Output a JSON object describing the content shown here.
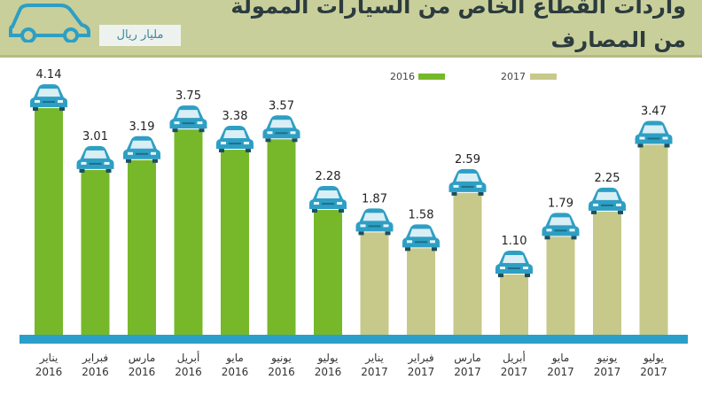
{
  "header": {
    "title_line1": "واردات القطاع الخاص من السيارات الممولة",
    "title_line2": "من المصارف",
    "unit": "مليار ريال"
  },
  "legend": {
    "items": [
      {
        "label": "2016",
        "color": "#76b82a"
      },
      {
        "label": "2017",
        "color": "#c6c98a"
      }
    ]
  },
  "colors": {
    "bar_2016": "#76b82a",
    "bar_2017": "#c6c98a",
    "base": "#2a9fc9",
    "car": "#2e9fc4",
    "header_bg": "#c9cf9a"
  },
  "chart_data": {
    "type": "bar",
    "categories": [
      {
        "month": "يناير",
        "year": "2016"
      },
      {
        "month": "فبراير",
        "year": "2016"
      },
      {
        "month": "مارس",
        "year": "2016"
      },
      {
        "month": "أبريل",
        "year": "2016"
      },
      {
        "month": "مايو",
        "year": "2016"
      },
      {
        "month": "يونيو",
        "year": "2016"
      },
      {
        "month": "يوليو",
        "year": "2016"
      },
      {
        "month": "يناير",
        "year": "2017"
      },
      {
        "month": "فبراير",
        "year": "2017"
      },
      {
        "month": "مارس",
        "year": "2017"
      },
      {
        "month": "أبريل",
        "year": "2017"
      },
      {
        "month": "مايو",
        "year": "2017"
      },
      {
        "month": "يونيو",
        "year": "2017"
      },
      {
        "month": "يوليو",
        "year": "2017"
      }
    ],
    "series": [
      {
        "name": "2016",
        "values": [
          4.14,
          3.01,
          3.19,
          3.75,
          3.38,
          3.57,
          2.28,
          null,
          null,
          null,
          null,
          null,
          null,
          null
        ]
      },
      {
        "name": "2017",
        "values": [
          null,
          null,
          null,
          null,
          null,
          null,
          null,
          1.87,
          1.58,
          2.59,
          1.1,
          1.79,
          2.25,
          3.47
        ]
      }
    ],
    "value_labels": [
      "4.14",
      "3.01",
      "3.19",
      "3.75",
      "3.38",
      "3.57",
      "2.28",
      "1.87",
      "1.58",
      "2.59",
      "1.10",
      "1.79",
      "2.25",
      "3.47"
    ],
    "ylim": [
      0,
      4.4
    ],
    "grid": false,
    "legend_position": "top-right"
  }
}
